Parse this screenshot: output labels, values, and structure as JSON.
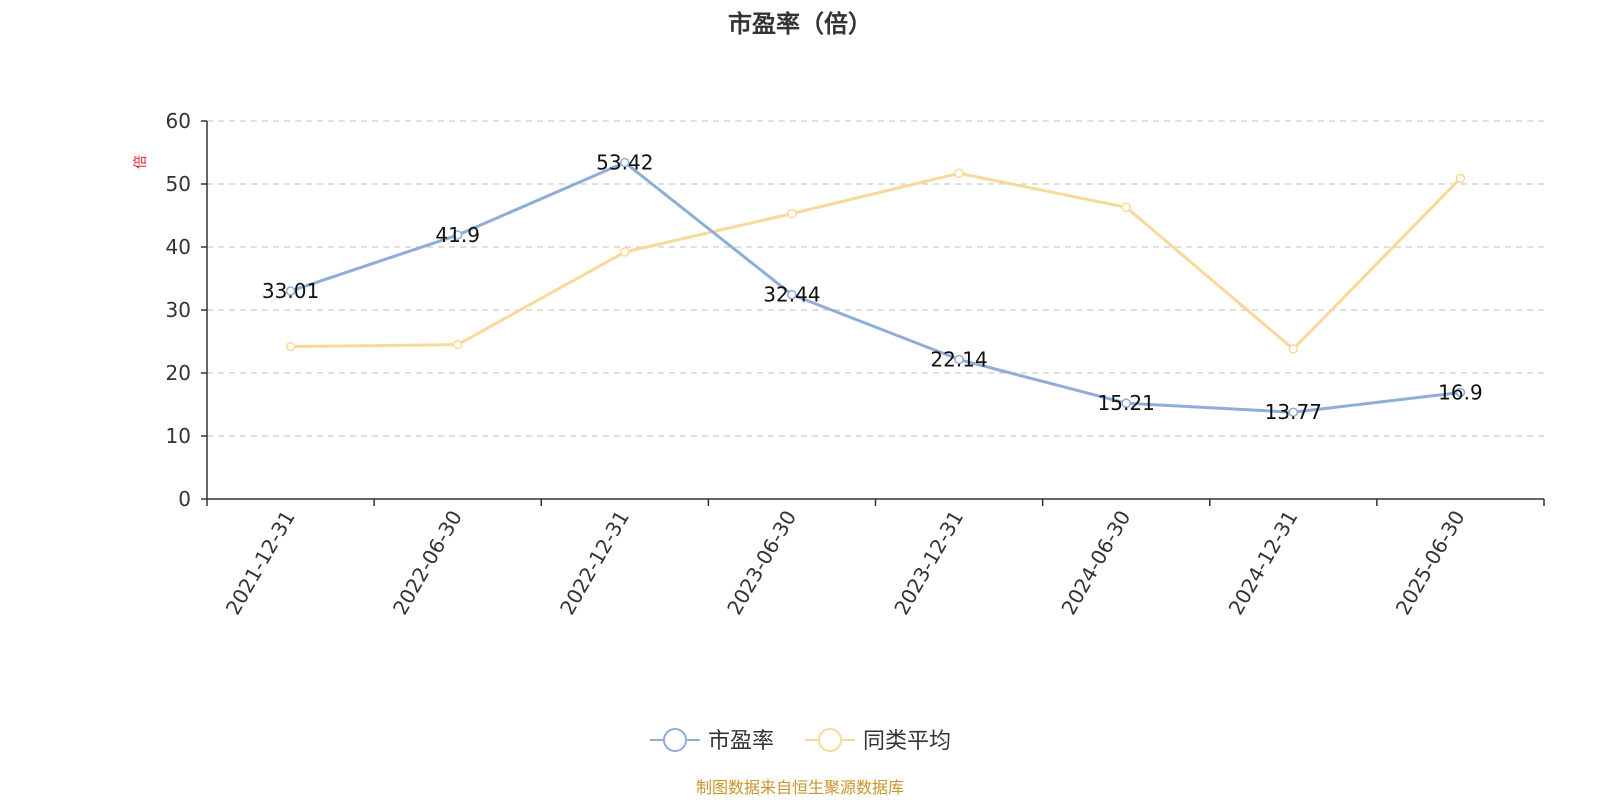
{
  "chart_data": {
    "type": "line",
    "title": "市盈率（倍）",
    "y_unit_label": "倍",
    "categories": [
      "2021-12-31",
      "2022-06-30",
      "2022-12-31",
      "2023-06-30",
      "2023-12-31",
      "2024-06-30",
      "2024-12-31",
      "2025-06-30"
    ],
    "ylim": [
      0,
      60
    ],
    "yticks": [
      0,
      10,
      20,
      30,
      40,
      50,
      60
    ],
    "grid": true,
    "legend_position": "bottom-center",
    "series": [
      {
        "name": "市盈率",
        "color": "#8eaed8",
        "labeled": true,
        "values": [
          33.01,
          41.9,
          53.42,
          32.44,
          22.14,
          15.21,
          13.77,
          16.9
        ],
        "labels": [
          "33.01",
          "41.9",
          "53.42",
          "32.44",
          "22.14",
          "15.21",
          "13.77",
          "16.9"
        ]
      },
      {
        "name": "同类平均",
        "color": "#f8d99a",
        "labeled": false,
        "values": [
          24.2,
          24.5,
          39.2,
          45.3,
          51.7,
          46.3,
          23.8,
          50.9
        ]
      }
    ]
  },
  "source_note": "制图数据来自恒生聚源数据库"
}
